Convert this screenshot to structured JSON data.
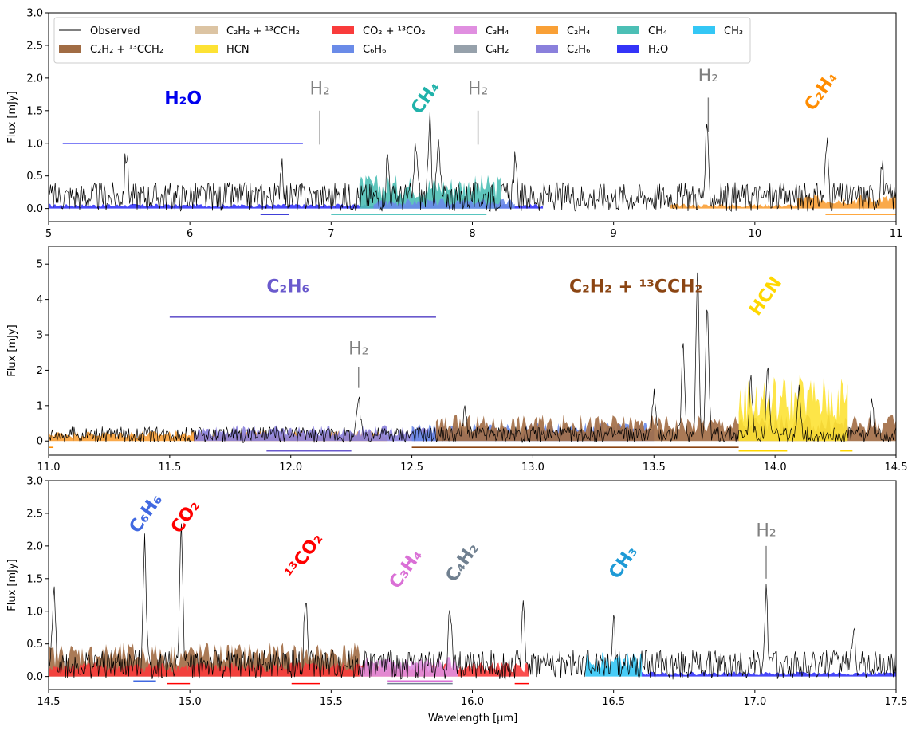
{
  "chart_data": {
    "type": "line",
    "xlabel": "Wavelength [µm]",
    "legend": {
      "position": "top-left",
      "entries": [
        {
          "key": "obs",
          "label": "Observed",
          "color": "#000000",
          "kind": "line"
        },
        {
          "key": "c2h2",
          "label": "C₂H₂ + ¹³CCH₂",
          "color": "#a16c44",
          "kind": "patch"
        },
        {
          "key": "c2h2b",
          "label": "C₂H₂ + ¹³CCH₂",
          "color": "#dcc4a3",
          "kind": "patch"
        },
        {
          "key": "hcn",
          "label": "HCN",
          "color": "#fde234",
          "kind": "patch"
        },
        {
          "key": "co2",
          "label": "CO₂ + ¹³CO₂",
          "color": "#f93b3b",
          "kind": "patch"
        },
        {
          "key": "c6h6",
          "label": "C₆H₆",
          "color": "#6a8be8",
          "kind": "patch"
        },
        {
          "key": "c3h4",
          "label": "C₃H₄",
          "color": "#e08fe0",
          "kind": "patch"
        },
        {
          "key": "c4h2",
          "label": "C₄H₂",
          "color": "#96a1ab",
          "kind": "patch"
        },
        {
          "key": "c2h4",
          "label": "C₂H₄",
          "color": "#f9a036",
          "kind": "patch"
        },
        {
          "key": "c2h6",
          "label": "C₂H₆",
          "color": "#8a80dc",
          "kind": "patch"
        },
        {
          "key": "ch4",
          "label": "CH₄",
          "color": "#4cbfb5",
          "kind": "patch"
        },
        {
          "key": "h2o",
          "label": "H₂O",
          "color": "#3434f8",
          "kind": "patch"
        },
        {
          "key": "ch3",
          "label": "CH₃",
          "color": "#34c7f5",
          "kind": "patch"
        }
      ]
    },
    "panels": [
      {
        "id": "p1",
        "ylabel": "Flux [mJy]",
        "xlim": [
          5,
          11
        ],
        "ylim": [
          -0.2,
          3.0
        ],
        "xticks": [
          5,
          6,
          7,
          8,
          9,
          10,
          11
        ],
        "xtick_labels": [
          "5",
          "6",
          "7",
          "8",
          "9",
          "10",
          "11"
        ],
        "yticks": [
          0.0,
          0.5,
          1.0,
          1.5,
          2.0,
          2.5,
          3.0
        ],
        "ytick_labels": [
          "0.0",
          "0.5",
          "1.0",
          "1.5",
          "2.0",
          "2.5",
          "3.0"
        ],
        "observed_peaks": [
          [
            5.55,
            0.7
          ],
          [
            6.65,
            0.6
          ],
          [
            7.4,
            0.6
          ],
          [
            7.6,
            0.85
          ],
          [
            7.7,
            1.1
          ],
          [
            7.76,
            0.8
          ],
          [
            8.3,
            0.5
          ],
          [
            9.66,
            0.92
          ],
          [
            10.51,
            0.8
          ],
          [
            10.9,
            0.5
          ]
        ],
        "model_bands": [
          {
            "key": "h2o",
            "from": 5.0,
            "to": 8.5,
            "level": 0.05
          },
          {
            "key": "ch4",
            "from": 7.2,
            "to": 8.2,
            "level": 0.35
          },
          {
            "key": "c6h6",
            "from": 7.3,
            "to": 8.3,
            "level": 0.1
          },
          {
            "key": "c2h4",
            "from": 10.3,
            "to": 11.0,
            "level": 0.15
          },
          {
            "key": "c2h4",
            "from": 9.4,
            "to": 10.3,
            "level": 0.05
          }
        ],
        "species_labels": [
          {
            "text": "H₂O",
            "x": 5.82,
            "y": 1.6,
            "color": "#0000ee",
            "rotate": 0
          },
          {
            "text": "CH₄",
            "x": 7.7,
            "y": 1.65,
            "color": "#20b2aa",
            "rotate": -55
          },
          {
            "text": "C₂H₄",
            "x": 10.5,
            "y": 1.75,
            "color": "#ff8c00",
            "rotate": -55
          }
        ],
        "h2_markers": [
          {
            "label": "H₂",
            "x": 6.92,
            "y_label": 1.75,
            "line_top": 1.5,
            "line_bottom": 0.98
          },
          {
            "label": "H₂",
            "x": 8.04,
            "y_label": 1.75,
            "line_top": 1.5,
            "line_bottom": 0.98
          },
          {
            "label": "H₂",
            "x": 9.67,
            "y_label": 1.95,
            "line_top": 1.7,
            "line_bottom": 1.18
          }
        ],
        "ranges": [
          {
            "from": 5.1,
            "to": 6.8,
            "y": 1.0,
            "color": "#0000ee"
          },
          {
            "from": 6.5,
            "to": 6.7,
            "y": -0.09,
            "color": "#0000cc"
          },
          {
            "from": 7.0,
            "to": 8.1,
            "y": -0.09,
            "color": "#20b2aa"
          },
          {
            "from": 10.5,
            "to": 11.0,
            "y": -0.09,
            "color": "#ff8c00"
          }
        ]
      },
      {
        "id": "p2",
        "ylabel": "Flux [mJy]",
        "xlim": [
          11.0,
          14.5
        ],
        "ylim": [
          -0.4,
          5.5
        ],
        "xticks": [
          11.0,
          11.5,
          12.0,
          12.5,
          13.0,
          13.5,
          14.0,
          14.5
        ],
        "xtick_labels": [
          "11.0",
          "11.5",
          "12.0",
          "12.5",
          "13.0",
          "13.5",
          "14.0",
          "14.5"
        ],
        "yticks": [
          0,
          1,
          2,
          3,
          4,
          5
        ],
        "ytick_labels": [
          "0",
          "1",
          "2",
          "3",
          "4",
          "5"
        ],
        "observed_peaks": [
          [
            12.28,
            1.05
          ],
          [
            12.72,
            0.8
          ],
          [
            13.5,
            1.2
          ],
          [
            13.62,
            2.5
          ],
          [
            13.68,
            4.6
          ],
          [
            13.72,
            3.7
          ],
          [
            13.9,
            1.6
          ],
          [
            13.97,
            1.8
          ],
          [
            14.1,
            1.4
          ],
          [
            14.4,
            0.9
          ]
        ],
        "model_bands": [
          {
            "key": "c2h4",
            "from": 11.0,
            "to": 12.4,
            "level": 0.2
          },
          {
            "key": "c2h6",
            "from": 11.6,
            "to": 12.6,
            "level": 0.3
          },
          {
            "key": "c6h6",
            "from": 12.5,
            "to": 13.5,
            "level": 0.35
          },
          {
            "key": "c2h2",
            "from": 12.6,
            "to": 14.5,
            "level": 0.5
          },
          {
            "key": "hcn",
            "from": 13.85,
            "to": 14.3,
            "level": 1.3
          }
        ],
        "species_labels": [
          {
            "text": "C₂H₆",
            "x": 11.9,
            "y": 4.2,
            "color": "#6a5acd",
            "rotate": 0
          },
          {
            "text": "C₂H₂ + ¹³CCH₂",
            "x": 13.15,
            "y": 4.2,
            "color": "#8b4513",
            "rotate": 0
          },
          {
            "text": "HCN",
            "x": 13.98,
            "y": 4.0,
            "color": "#ffd700",
            "rotate": -55
          }
        ],
        "h2_markers": [
          {
            "label": "H₂",
            "x": 12.28,
            "y_label": 2.45,
            "line_top": 2.1,
            "line_bottom": 1.5
          }
        ],
        "ranges": [
          {
            "from": 11.5,
            "to": 12.6,
            "y": 3.5,
            "color": "#6a5acd"
          },
          {
            "from": 11.9,
            "to": 12.25,
            "y": -0.28,
            "color": "#6a5acd"
          },
          {
            "from": 12.5,
            "to": 13.85,
            "y": -0.18,
            "color": "#8b4513"
          },
          {
            "from": 13.85,
            "to": 14.05,
            "y": -0.28,
            "color": "#ffd700"
          },
          {
            "from": 14.27,
            "to": 14.32,
            "y": -0.28,
            "color": "#ffd700"
          },
          {
            "from": 11.0,
            "to": 11.02,
            "y": -0.18,
            "color": "#ff8c00"
          }
        ]
      },
      {
        "id": "p3",
        "ylabel": "Flux [mJy]",
        "xlim": [
          14.5,
          17.5
        ],
        "ylim": [
          -0.2,
          3.0
        ],
        "xticks": [
          14.5,
          15.0,
          15.5,
          16.0,
          16.5,
          17.0,
          17.5
        ],
        "xtick_labels": [
          "14.5",
          "15.0",
          "15.5",
          "16.0",
          "16.5",
          "17.0",
          "17.5"
        ],
        "yticks": [
          0.0,
          0.5,
          1.0,
          1.5,
          2.0,
          2.5,
          3.0
        ],
        "ytick_labels": [
          "0.0",
          "0.5",
          "1.0",
          "1.5",
          "2.0",
          "2.5",
          "3.0"
        ],
        "observed_peaks": [
          [
            14.52,
            1.15
          ],
          [
            14.84,
            2.0
          ],
          [
            14.97,
            2.15
          ],
          [
            15.41,
            1.0
          ],
          [
            15.92,
            0.9
          ],
          [
            16.18,
            0.9
          ],
          [
            16.5,
            0.6
          ],
          [
            17.04,
            1.05
          ],
          [
            17.35,
            0.7
          ]
        ],
        "model_bands": [
          {
            "key": "c2h2",
            "from": 14.5,
            "to": 15.6,
            "level": 0.35
          },
          {
            "key": "co2",
            "from": 14.5,
            "to": 16.2,
            "level": 0.15
          },
          {
            "key": "c3h4",
            "from": 15.6,
            "to": 15.95,
            "level": 0.2
          },
          {
            "key": "ch3",
            "from": 16.4,
            "to": 16.6,
            "level": 0.25
          },
          {
            "key": "h2o",
            "from": 16.6,
            "to": 17.5,
            "level": 0.05
          }
        ],
        "species_labels": [
          {
            "text": "C₆H₆",
            "x": 14.86,
            "y": 2.45,
            "color": "#4169e1",
            "rotate": -55
          },
          {
            "text": "CO₂",
            "x": 15.0,
            "y": 2.4,
            "color": "#ff0000",
            "rotate": -55
          },
          {
            "text": "¹³CO₂",
            "x": 15.42,
            "y": 1.8,
            "color": "#ff0000",
            "rotate": -55
          },
          {
            "text": "C₃H₄",
            "x": 15.78,
            "y": 1.6,
            "color": "#da70d6",
            "rotate": -55
          },
          {
            "text": "C₄H₂",
            "x": 15.98,
            "y": 1.7,
            "color": "#708090",
            "rotate": -55
          },
          {
            "text": "CH₃",
            "x": 16.55,
            "y": 1.7,
            "color": "#1e9ad6",
            "rotate": -55
          }
        ],
        "h2_markers": [
          {
            "label": "H₂",
            "x": 17.04,
            "y_label": 2.15,
            "line_top": 2.0,
            "line_bottom": 1.5
          }
        ],
        "ranges": [
          {
            "from": 14.8,
            "to": 14.88,
            "y": -0.07,
            "color": "#4169e1"
          },
          {
            "from": 14.92,
            "to": 15.0,
            "y": -0.11,
            "color": "#ff0000"
          },
          {
            "from": 15.36,
            "to": 15.46,
            "y": -0.11,
            "color": "#ff0000"
          },
          {
            "from": 15.7,
            "to": 15.93,
            "y": -0.07,
            "color": "#da70d6"
          },
          {
            "from": 15.7,
            "to": 15.93,
            "y": -0.11,
            "color": "#708090"
          },
          {
            "from": 16.15,
            "to": 16.2,
            "y": -0.11,
            "color": "#ff0000"
          }
        ]
      }
    ]
  }
}
